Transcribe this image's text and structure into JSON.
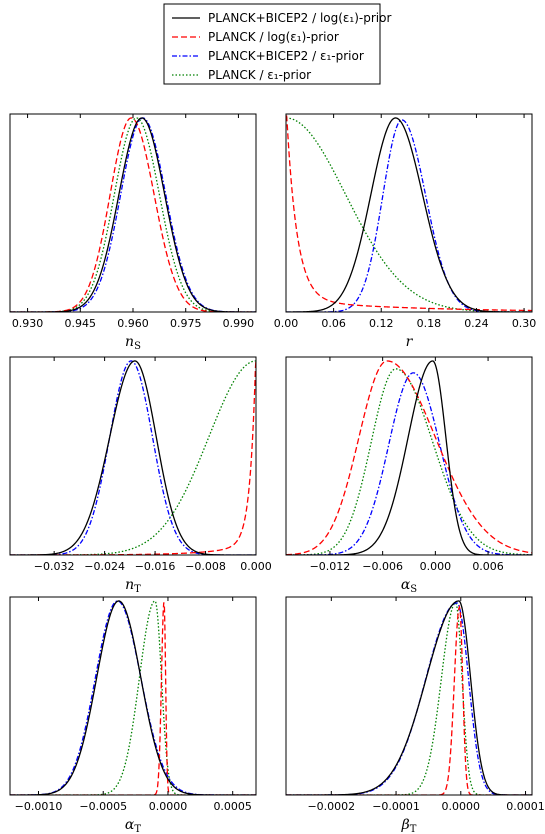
{
  "legend": {
    "entries": [
      {
        "label": "PLANCK+BICEP2 / log(ε₁)-prior",
        "color": "#000000",
        "dash": "solid"
      },
      {
        "label": "PLANCK / log(ε₁)-prior",
        "color": "#ff0000",
        "dash": "dashed"
      },
      {
        "label": "PLANCK+BICEP2 / ε₁-prior",
        "color": "#0000ff",
        "dash": "dashdot"
      },
      {
        "label": "PLANCK / ε₁-prior",
        "color": "#008000",
        "dash": "dotted"
      }
    ]
  },
  "chart_data": [
    {
      "type": "line",
      "xlabel": "n_S",
      "xlim": [
        0.925,
        0.995
      ],
      "xticks": [
        "0.930",
        "0.945",
        "0.960",
        "0.975",
        "0.990"
      ],
      "tick_values": [
        0.93,
        0.945,
        0.96,
        0.975,
        0.99
      ],
      "series": [
        {
          "shape": "gauss",
          "mu": 0.9625,
          "sl": 0.0065,
          "sr": 0.0065,
          "amp": 0.98
        },
        {
          "shape": "gauss",
          "mu": 0.9595,
          "sl": 0.006,
          "sr": 0.0065,
          "amp": 0.98
        },
        {
          "shape": "gauss",
          "mu": 0.9628,
          "sl": 0.0063,
          "sr": 0.0065,
          "amp": 0.98
        },
        {
          "shape": "gauss",
          "mu": 0.961,
          "sl": 0.0063,
          "sr": 0.0065,
          "amp": 0.98
        }
      ]
    },
    {
      "type": "line",
      "xlabel": "r",
      "xlim": [
        0.0,
        0.31
      ],
      "xticks": [
        "0.00",
        "0.06",
        "0.12",
        "0.18",
        "0.24",
        "0.30"
      ],
      "tick_values": [
        0.0,
        0.06,
        0.12,
        0.18,
        0.24,
        0.3
      ],
      "series": [
        {
          "shape": "gauss",
          "mu": 0.138,
          "sl": 0.031,
          "sr": 0.034,
          "amp": 0.98
        },
        {
          "shape": "decay",
          "a1": 1.0,
          "t1": 0.013,
          "a2": 0.06,
          "t2": 0.15
        },
        {
          "shape": "gauss",
          "mu": 0.146,
          "sl": 0.024,
          "sr": 0.03,
          "amp": 0.97
        },
        {
          "shape": "halfgauss",
          "s": 0.075,
          "amp": 0.98
        }
      ]
    },
    {
      "type": "line",
      "xlabel": "n_T",
      "xlim": [
        -0.039,
        0.0
      ],
      "xticks": [
        "−0.032",
        "−0.024",
        "−0.016",
        "−0.008",
        "0.000"
      ],
      "tick_values": [
        -0.032,
        -0.024,
        -0.016,
        -0.008,
        0.0
      ],
      "series": [
        {
          "shape": "gauss",
          "mu": -0.0192,
          "sl": 0.004,
          "sr": 0.0034,
          "amp": 0.98
        },
        {
          "shape": "rightedge",
          "s": 0.0009,
          "amp": 0.98,
          "tail": 0.06,
          "ts": 0.006
        },
        {
          "shape": "gauss",
          "mu": -0.0198,
          "sl": 0.0034,
          "sr": 0.0034,
          "amp": 0.98
        },
        {
          "shape": "gauss",
          "mu": 0.0,
          "sl": 0.0075,
          "sr": 0.0075,
          "amp": 0.98
        }
      ]
    },
    {
      "type": "line",
      "xlabel": "α_S",
      "xlim": [
        -0.017,
        0.011
      ],
      "xticks": [
        "−0.012",
        "−0.006",
        "0.000",
        "0.006"
      ],
      "tick_values": [
        -0.012,
        -0.006,
        0.0,
        0.006
      ],
      "series": [
        {
          "shape": "gauss",
          "mu": -0.0003,
          "sl": 0.0028,
          "sr": 0.0015,
          "amp": 0.98
        },
        {
          "shape": "gauss",
          "mu": -0.0055,
          "sl": 0.0032,
          "sr": 0.0055,
          "amp": 0.98
        },
        {
          "shape": "gauss",
          "mu": -0.0025,
          "sl": 0.0028,
          "sr": 0.003,
          "amp": 0.92
        },
        {
          "shape": "gauss",
          "mu": -0.0045,
          "sl": 0.0028,
          "sr": 0.0042,
          "amp": 0.94
        }
      ]
    },
    {
      "type": "line",
      "xlabel": "α_T",
      "xlim": [
        -0.00122,
        0.00068
      ],
      "xticks": [
        "−0.0010",
        "−0.0005",
        "0.0000",
        "0.0005"
      ],
      "tick_values": [
        -0.001,
        -0.0005,
        0.0,
        0.0005
      ],
      "series": [
        {
          "shape": "gauss",
          "mu": -0.00038,
          "sl": 0.00017,
          "sr": 0.00017,
          "amp": 0.98
        },
        {
          "shape": "gauss",
          "mu": -3e-05,
          "sl": 2e-05,
          "sr": 1.2e-05,
          "amp": 0.98
        },
        {
          "shape": "gauss",
          "mu": -0.00039,
          "sl": 0.00017,
          "sr": 0.00018,
          "amp": 0.98
        },
        {
          "shape": "gauss",
          "mu": -0.0001,
          "sl": 0.00012,
          "sr": 5e-05,
          "amp": 0.98
        }
      ]
    },
    {
      "type": "line",
      "xlabel": "β_T",
      "xlim": [
        -0.00027,
        0.00011
      ],
      "xticks": [
        "−0.0002",
        "−0.0001",
        "0.0000",
        "0.0001"
      ],
      "tick_values": [
        -0.0002,
        -0.0001,
        0.0,
        0.0001
      ],
      "series": [
        {
          "shape": "gauss",
          "mu": -3e-06,
          "sl": 5e-05,
          "sr": 1.8e-05,
          "amp": 0.98
        },
        {
          "shape": "gauss",
          "mu": -2e-06,
          "sl": 8e-06,
          "sr": 5e-06,
          "amp": 0.95
        },
        {
          "shape": "gauss",
          "mu": -6e-06,
          "sl": 4.8e-05,
          "sr": 1.8e-05,
          "amp": 0.97
        },
        {
          "shape": "gauss",
          "mu": -8e-06,
          "sl": 2.2e-05,
          "sr": 1e-05,
          "amp": 0.97
        }
      ]
    }
  ]
}
